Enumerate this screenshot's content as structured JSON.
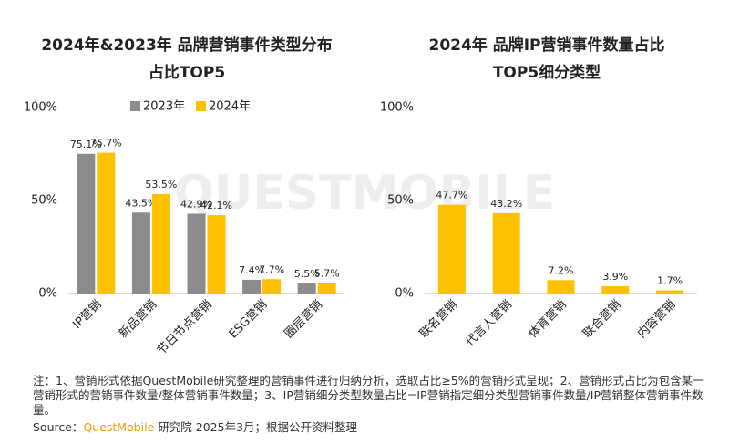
{
  "chart_data": [
    {
      "type": "bar",
      "title": [
        "2024年&2023年 品牌营销事件类型分布",
        "占比TOP5"
      ],
      "categories": [
        "IP营销",
        "新品营销",
        "节日节点营销",
        "ESG营销",
        "圈层营销"
      ],
      "series": [
        {
          "name": "2023年",
          "color": "#8c8c8c",
          "values": [
            75.1,
            43.5,
            42.9,
            7.4,
            5.5
          ],
          "value_labels": [
            "75.1%",
            "43.5%",
            "42.9%",
            "7.4%",
            "5.5%"
          ]
        },
        {
          "name": "2024年",
          "color": "#ffc000",
          "values": [
            75.7,
            53.5,
            42.1,
            7.7,
            5.7
          ],
          "value_labels": [
            "75.7%",
            "53.5%",
            "42.1%",
            "7.7%",
            "5.7%"
          ]
        }
      ],
      "ylim": [
        0,
        100
      ],
      "yticks": [
        {
          "value": 0,
          "label": "0%"
        },
        {
          "value": 50,
          "label": "50%"
        },
        {
          "value": 100,
          "label": "100%"
        }
      ],
      "legend": "top"
    },
    {
      "type": "bar",
      "title": [
        "2024年 品牌IP营销事件数量占比",
        "TOP5细分类型"
      ],
      "categories": [
        "联名营销",
        "代言人营销",
        "体育营销",
        "联合营销",
        "内容营销"
      ],
      "values": [
        47.7,
        43.2,
        7.2,
        3.9,
        1.7
      ],
      "value_labels": [
        "47.7%",
        "43.2%",
        "7.2%",
        "3.9%",
        "1.7%"
      ],
      "color": "#ffc000",
      "ylim": [
        0,
        100
      ],
      "yticks": [
        {
          "value": 0,
          "label": "0%"
        },
        {
          "value": 50,
          "label": "50%"
        },
        {
          "value": 100,
          "label": "100%"
        }
      ]
    }
  ],
  "watermark": "QUESTMOBILE",
  "note": "注：1、营销形式依据QuestMobile研究整理的营销事件进行归纳分析，选取占比≥5%的营销形式呈现；2、营销形式占比为包含某一营销形式的营销事件数量/整体营销事件数量；3、IP营销细分类型数量占比=IP营销指定细分类型营销事件数量/IP营销整体营销事件数量。",
  "source": {
    "label": "Source：",
    "brand": "QuestMobile",
    "text": "研究院 2025年3月；根据公开资料整理"
  }
}
